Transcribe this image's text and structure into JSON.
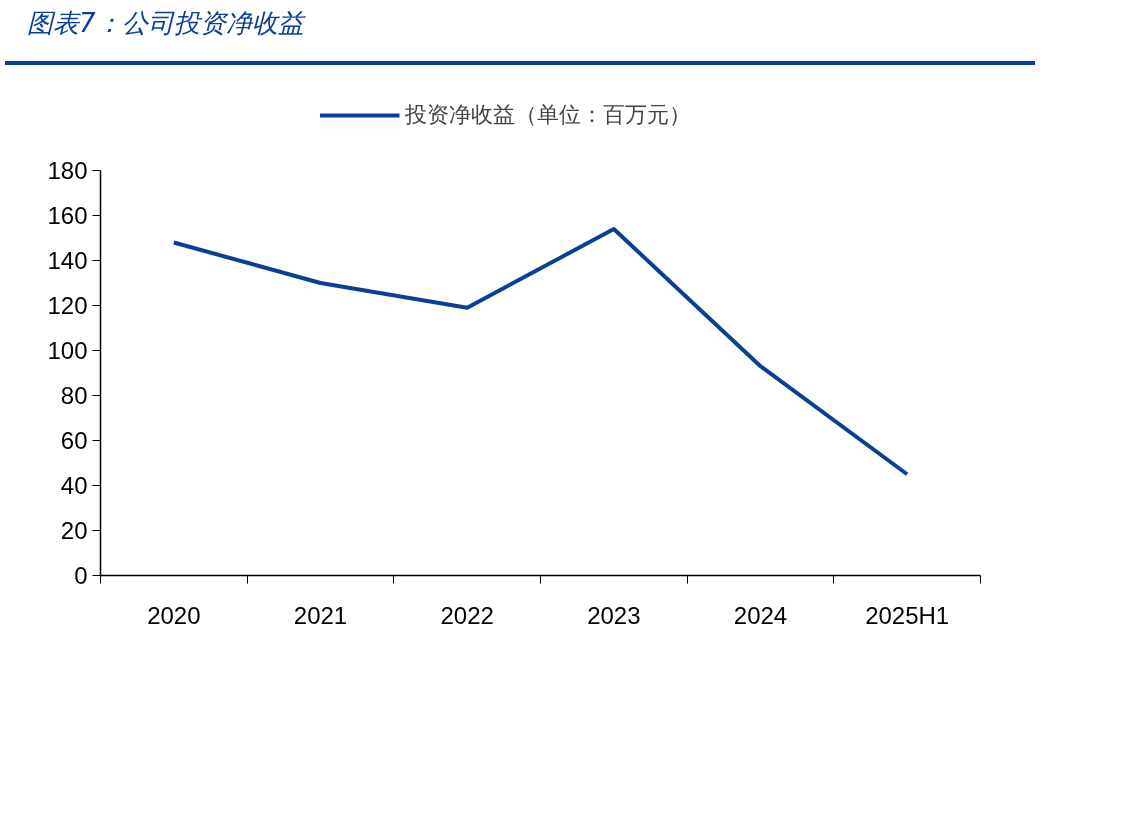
{
  "chart_data": {
    "type": "line",
    "title": "图表7：公司投资净收益",
    "categories": [
      "2020",
      "2021",
      "2022",
      "2023",
      "2024",
      "2025H1"
    ],
    "series": [
      {
        "name": "投资净收益（单位：百万元）",
        "color": "#0b3f97",
        "values": [
          148,
          130,
          119,
          154,
          93,
          45
        ]
      }
    ],
    "ylim": [
      0,
      180
    ],
    "yticks": [
      0,
      20,
      40,
      60,
      80,
      100,
      120,
      140,
      160,
      180
    ],
    "grid": false,
    "legend": "top",
    "marker": "none",
    "line_style": "solid"
  }
}
